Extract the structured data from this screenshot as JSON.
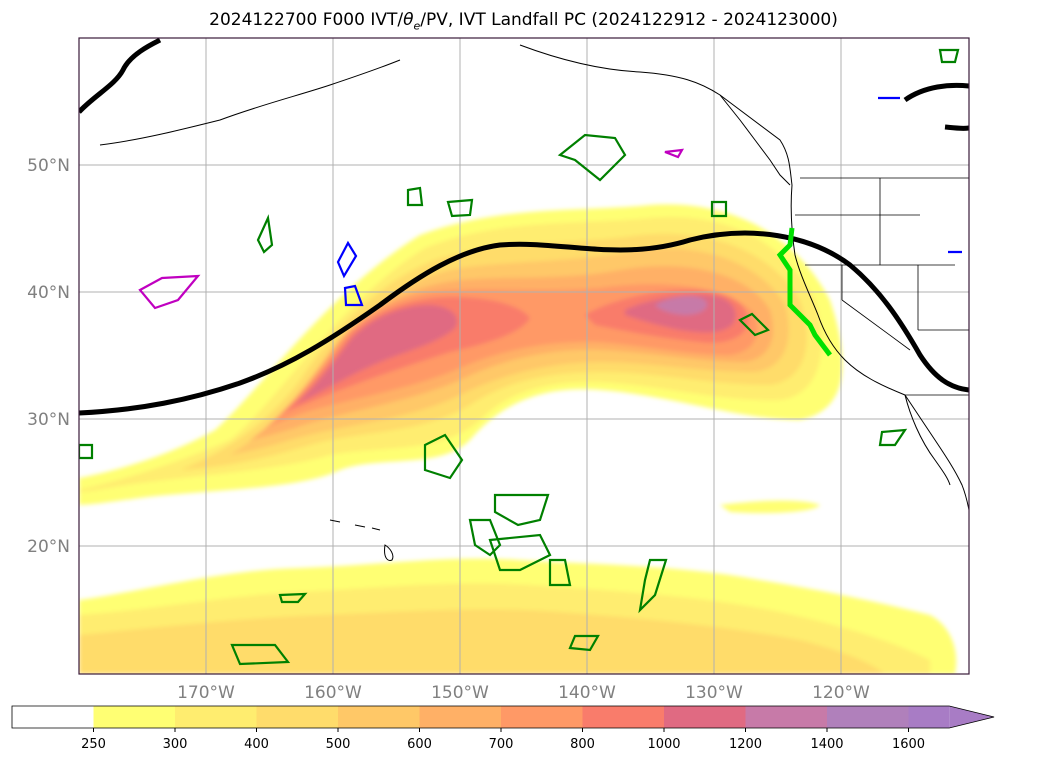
{
  "chart_data": {
    "type": "heatmap",
    "title": "2024122700 F000 IVT/θe/PV, IVT Landfall PC (2024122912 - 2024123000)",
    "title_parts": {
      "before": "2024122700 F000 IVT/",
      "theta": "θ",
      "sub": "e",
      "after": "/PV, IVT Landfall PC (2024122912 - 2024123000)"
    },
    "map": {
      "lon_range": [
        -180,
        -110
      ],
      "lat_range": [
        10,
        60
      ],
      "grid": true
    },
    "x_ticks": [
      "170°W",
      "160°W",
      "150°W",
      "140°W",
      "130°W",
      "120°W"
    ],
    "x_tick_values": [
      -170,
      -160,
      -150,
      -140,
      -130,
      -120
    ],
    "y_ticks": [
      "50°N",
      "40°N",
      "30°N",
      "20°N"
    ],
    "y_tick_values": [
      50,
      40,
      30,
      20
    ],
    "colorbar": {
      "levels": [
        "250",
        "300",
        "400",
        "500",
        "600",
        "700",
        "800",
        "1000",
        "1200",
        "1400",
        "1600"
      ],
      "colors": [
        "#ffffff",
        "#ffff73",
        "#ffed6f",
        "#ffdc6b",
        "#ffc867",
        "#ffb066",
        "#ff9966",
        "#f97c6b",
        "#e06a82",
        "#c77aa8",
        "#b080bb",
        "#a87cc5"
      ],
      "extend": "max"
    },
    "ivt_field": {
      "core_1": {
        "lon": -150,
        "lat": 37,
        "value": 1200
      },
      "core_2": {
        "lon": -133,
        "lat": 39,
        "value": 1400
      },
      "south_band_lat": 15
    },
    "theta_e_contour_color": "#000000",
    "pv_contour_colors": [
      "#008000",
      "#0000ff",
      "#c000c0"
    ],
    "landfall_pc_color": "#00e000"
  }
}
